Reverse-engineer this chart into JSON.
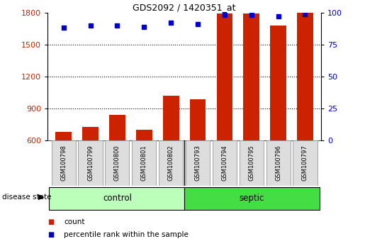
{
  "title": "GDS2092 / 1420351_at",
  "samples": [
    "GSM100798",
    "GSM100799",
    "GSM100800",
    "GSM100801",
    "GSM100802",
    "GSM100793",
    "GSM100794",
    "GSM100795",
    "GSM100796",
    "GSM100797"
  ],
  "counts": [
    680,
    730,
    840,
    700,
    1020,
    990,
    1790,
    1790,
    1680,
    1800
  ],
  "percentiles": [
    88,
    90,
    90,
    89,
    92,
    91,
    98,
    98,
    97,
    99
  ],
  "ylim_left": [
    600,
    1800
  ],
  "ylim_right": [
    0,
    100
  ],
  "yticks_left": [
    600,
    900,
    1200,
    1500,
    1800
  ],
  "yticks_right": [
    0,
    25,
    50,
    75,
    100
  ],
  "bar_color": "#cc2200",
  "dot_color": "#0000cc",
  "control_color": "#bbffbb",
  "septic_color": "#44dd44",
  "disease_state_label": "disease state",
  "legend_count": "count",
  "legend_percentile": "percentile rank within the sample",
  "grid_color": "#000000",
  "tick_label_color_left": "#cc2200",
  "tick_label_color_right": "#0000cc",
  "grid_lines": [
    900,
    1200,
    1500
  ],
  "n_control": 5,
  "n_septic": 5
}
